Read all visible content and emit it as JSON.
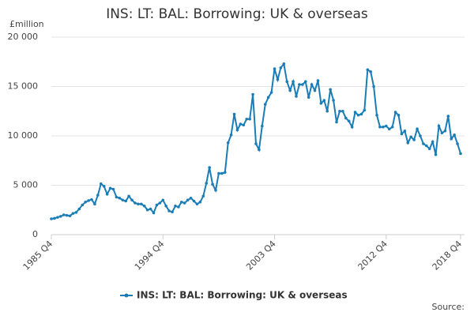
{
  "chart_data": {
    "type": "line",
    "title": "INS: LT: BAL: Borrowing: UK & overseas",
    "y_label": "£million",
    "source": "Source:",
    "categories": [
      "1985 Q4",
      null,
      null,
      null,
      null,
      null,
      null,
      null,
      null,
      null,
      null,
      null,
      null,
      null,
      null,
      null,
      null,
      null,
      null,
      null,
      null,
      null,
      null,
      null,
      null,
      null,
      null,
      null,
      null,
      null,
      null,
      null,
      null,
      null,
      null,
      null,
      "1994 Q4",
      null,
      null,
      null,
      null,
      null,
      null,
      null,
      null,
      null,
      null,
      null,
      null,
      null,
      null,
      null,
      null,
      null,
      null,
      null,
      null,
      null,
      null,
      null,
      null,
      null,
      null,
      null,
      null,
      null,
      null,
      null,
      null,
      null,
      null,
      null,
      "2003 Q4",
      null,
      null,
      null,
      null,
      null,
      null,
      null,
      null,
      null,
      null,
      null,
      null,
      null,
      null,
      null,
      null,
      null,
      null,
      null,
      null,
      null,
      null,
      null,
      null,
      null,
      null,
      null,
      null,
      null,
      null,
      null,
      null,
      null,
      null,
      null,
      "2012 Q4",
      null,
      null,
      null,
      null,
      null,
      null,
      null,
      null,
      null,
      null,
      null,
      null,
      null,
      null,
      null,
      null,
      null,
      null,
      null,
      null,
      null,
      null,
      null,
      "2018 Q4"
    ],
    "series": [
      {
        "name": "INS: LT: BAL: Borrowing: UK & overseas",
        "color": "#1a7db6",
        "values": [
          1600,
          1650,
          1750,
          1850,
          2000,
          1950,
          1900,
          2150,
          2250,
          2600,
          3000,
          3300,
          3450,
          3550,
          3100,
          4000,
          5150,
          4900,
          4100,
          4700,
          4600,
          3800,
          3700,
          3500,
          3400,
          3900,
          3500,
          3200,
          3100,
          3100,
          2900,
          2500,
          2600,
          2200,
          3000,
          3200,
          3500,
          2900,
          2400,
          2300,
          2900,
          2800,
          3300,
          3200,
          3500,
          3700,
          3400,
          3100,
          3300,
          3900,
          5200,
          6800,
          5100,
          4500,
          6200,
          6200,
          6300,
          9300,
          10100,
          12200,
          10600,
          11200,
          11100,
          11700,
          11700,
          14200,
          9200,
          8600,
          11000,
          13200,
          13900,
          14400,
          16800,
          15700,
          16900,
          17300,
          15500,
          14600,
          15500,
          14000,
          15200,
          15200,
          15500,
          13900,
          15200,
          14600,
          15600,
          13300,
          13600,
          12500,
          14700,
          13600,
          11400,
          12500,
          12500,
          11800,
          11500,
          10900,
          12400,
          12100,
          12200,
          12600,
          16700,
          16500,
          15000,
          12100,
          10900,
          10900,
          11000,
          10700,
          10900,
          12400,
          12100,
          10200,
          10500,
          9300,
          9900,
          9600,
          10700,
          10000,
          9200,
          9000,
          8700,
          9400,
          8100,
          11000,
          10300,
          10500,
          12000,
          9700,
          10100,
          9200,
          8200
        ]
      }
    ],
    "ylim": [
      0,
      20000
    ],
    "yticks": [
      0,
      {
        "value": 5000,
        "label": "5 000"
      },
      {
        "value": 10000,
        "label": "10 000"
      },
      {
        "value": 15000,
        "label": "15 000"
      },
      {
        "value": 20000,
        "label": "20 000"
      }
    ],
    "grid": true
  }
}
